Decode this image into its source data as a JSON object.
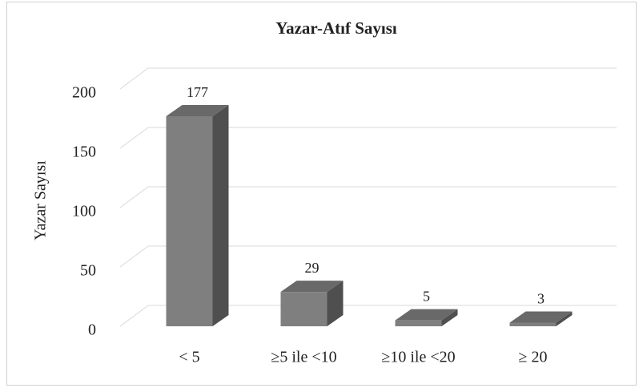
{
  "chart_data": {
    "type": "bar3d",
    "title": "Yazar-Atıf Sayısı",
    "y_label": "Yazar Sayısı",
    "categories": [
      "< 5",
      "≥5 ile <10",
      "≥10 ile <20",
      "≥ 20"
    ],
    "values": [
      177,
      29,
      5,
      3
    ],
    "color": "#7f7f7f",
    "ylim": [
      0,
      200
    ],
    "yticks": [
      0,
      50,
      100,
      150,
      200
    ],
    "grid": true
  }
}
